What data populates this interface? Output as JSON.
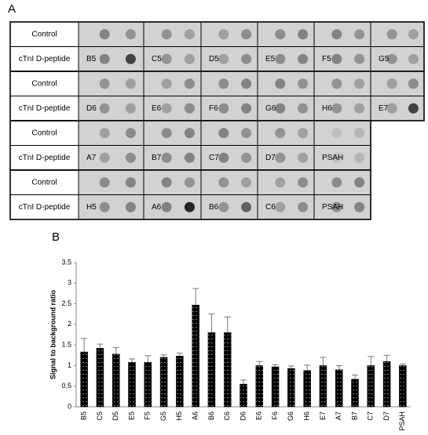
{
  "panel_a": {
    "label": "A",
    "groups": [
      {
        "rows": [
          "Control",
          "cTnI D-peptide"
        ],
        "labels": [
          "B5",
          "C5",
          "D5",
          "E5",
          "F5",
          "G5"
        ]
      },
      {
        "rows": [
          "Control",
          "cTnI D-peptide"
        ],
        "labels": [
          "D6",
          "E6",
          "F6",
          "G6",
          "H6",
          "E7"
        ]
      },
      {
        "rows": [
          "Control",
          "cTnI D-peptide"
        ],
        "labels": [
          "A7",
          "B7",
          "C7",
          "D7",
          "PSAH"
        ]
      },
      {
        "rows": [
          "Control",
          "cTnI D-peptide"
        ],
        "labels": [
          "H5",
          "A6",
          "B6",
          "C6",
          "PSAH"
        ]
      }
    ]
  },
  "chart_data": {
    "type": "bar",
    "panel_label": "B",
    "y_label": "Signal to background ratio",
    "categories": [
      "B5",
      "C5",
      "D5",
      "E5",
      "F5",
      "G5",
      "H5",
      "A6",
      "B6",
      "C6",
      "D6",
      "E6",
      "F6",
      "G6",
      "H6",
      "E7",
      "A7",
      "B7",
      "C7",
      "D7",
      "PSAH"
    ],
    "values": [
      1.33,
      1.42,
      1.28,
      1.08,
      1.08,
      1.2,
      1.23,
      2.47,
      1.8,
      1.8,
      0.55,
      1.0,
      0.97,
      0.93,
      0.88,
      1.0,
      0.9,
      0.67,
      1.0,
      1.1,
      1.0
    ],
    "errors": [
      0.33,
      0.1,
      0.16,
      0.08,
      0.16,
      0.06,
      0.07,
      0.4,
      0.45,
      0.38,
      0.1,
      0.1,
      0.05,
      0.06,
      0.13,
      0.2,
      0.1,
      0.1,
      0.22,
      0.15,
      0.04
    ],
    "color": "#000000",
    "ylim": [
      0,
      3.5
    ],
    "yticks": [
      0,
      0.5,
      1,
      1.5,
      2,
      2.5,
      3,
      3.5
    ]
  }
}
